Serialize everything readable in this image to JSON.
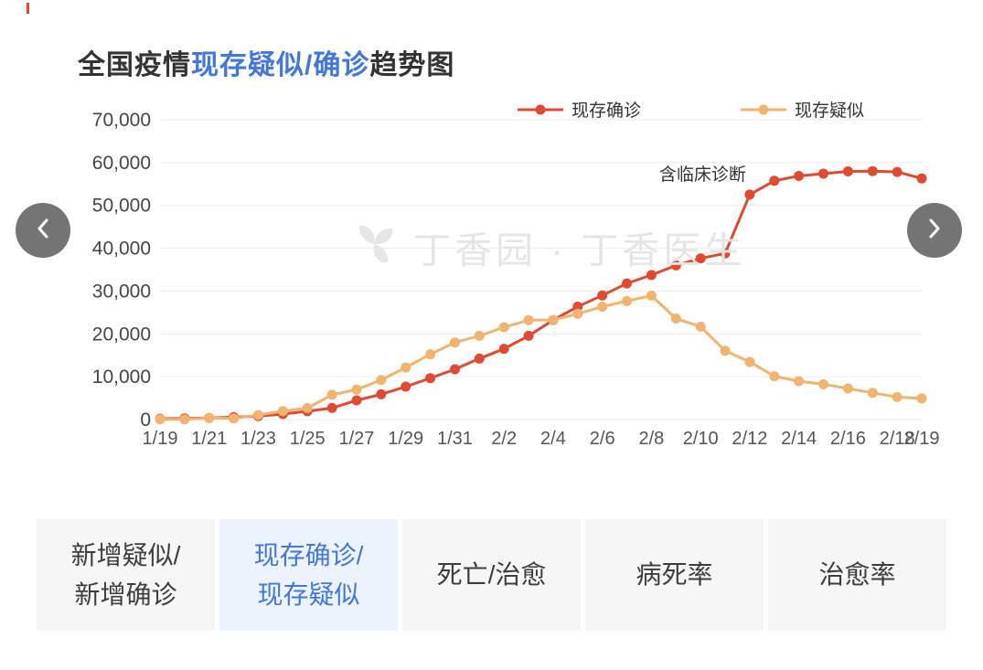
{
  "header": {
    "title_prefix": "全国疫情",
    "title_highlight": "现存疑似/确诊",
    "title_suffix": "趋势图",
    "highlight_color": "#4377d8"
  },
  "watermark": {
    "text": "丁香园 · 丁香医生"
  },
  "legend": [
    {
      "label": "现存确诊",
      "color": "#df4a32"
    },
    {
      "label": "现存疑似",
      "color": "#f0b470"
    }
  ],
  "chart_data": {
    "type": "line",
    "title": "全国疫情现存疑似/确诊趋势图",
    "ylim": [
      0,
      70000
    ],
    "y_ticks": [
      0,
      10000,
      20000,
      30000,
      40000,
      50000,
      60000,
      70000
    ],
    "grid": "horizontal",
    "legend_position": "top",
    "x": [
      "1/19",
      "1/20",
      "1/21",
      "1/22",
      "1/23",
      "1/24",
      "1/25",
      "1/26",
      "1/27",
      "1/28",
      "1/29",
      "1/30",
      "1/31",
      "2/1",
      "2/2",
      "2/3",
      "2/4",
      "2/5",
      "2/6",
      "2/7",
      "2/8",
      "2/9",
      "2/10",
      "2/11",
      "2/12",
      "2/13",
      "2/14",
      "2/15",
      "2/16",
      "2/17",
      "2/18",
      "2/19"
    ],
    "x_tick_labels": [
      "1/19",
      "1/21",
      "1/23",
      "1/25",
      "1/27",
      "1/29",
      "1/31",
      "2/2",
      "2/4",
      "2/6",
      "2/8",
      "2/10",
      "2/12",
      "2/14",
      "2/16",
      "2/18",
      "2/19"
    ],
    "series": [
      {
        "name": "现存确诊",
        "color": "#df4a32",
        "values": [
          198,
          270,
          375,
          549,
          818,
          1273,
          1950,
          2682,
          4480,
          5900,
          7678,
          9658,
          11746,
          14240,
          16508,
          19544,
          23214,
          26359,
          28985,
          31774,
          33738,
          35982,
          37626,
          38800,
          52526,
          55748,
          56873,
          57416,
          57934,
          58016,
          57805,
          56303
        ]
      },
      {
        "name": "现存疑似",
        "color": "#f0b470",
        "values": [
          54,
          37,
          393,
          257,
          1072,
          1965,
          2684,
          5794,
          6973,
          9239,
          12167,
          15238,
          17988,
          19544,
          21558,
          23214,
          23260,
          24702,
          26359,
          27657,
          28942,
          23589,
          21675,
          16067,
          13435,
          10109,
          8969,
          8228,
          7264,
          6242,
          5248,
          4922
        ]
      }
    ],
    "annotation": {
      "text": "含临床诊断",
      "x": "2/12",
      "series": "现存确诊"
    }
  },
  "tabs": [
    {
      "label_lines": [
        "新增疑似/",
        "新增确诊"
      ],
      "selected": false
    },
    {
      "label_lines": [
        "现存确诊/",
        "现存疑似"
      ],
      "selected": true
    },
    {
      "label_lines": [
        "死亡/治愈"
      ],
      "selected": false
    },
    {
      "label_lines": [
        "病死率"
      ],
      "selected": false
    },
    {
      "label_lines": [
        "治愈率"
      ],
      "selected": false
    }
  ]
}
